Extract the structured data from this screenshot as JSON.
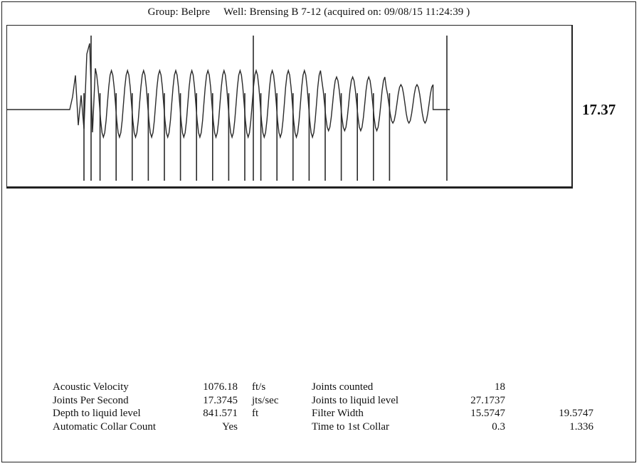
{
  "header": {
    "group": "Group: Belpre",
    "well": "Well: Brensing B 7-12 (acquired on: 09/08/15 11:24:39 )"
  },
  "side_value": "17.37",
  "stats_left": [
    {
      "label": "Acoustic Velocity",
      "value": "1076.18",
      "unit": "ft/s"
    },
    {
      "label": "Joints Per Second",
      "value": "17.3745",
      "unit": "jts/sec"
    },
    {
      "label": "Depth to liquid level",
      "value": "841.571",
      "unit": "ft"
    },
    {
      "label": "Automatic Collar Count",
      "value": "Yes",
      "unit": ""
    }
  ],
  "stats_right": [
    {
      "label": "Joints counted",
      "value": "18",
      "value2": ""
    },
    {
      "label": "Joints to liquid level",
      "value": "27.1737",
      "value2": ""
    },
    {
      "label": "Filter Width",
      "value": "15.5747",
      "value2": "19.5747"
    },
    {
      "label": "Time to 1st Collar",
      "value": "0.3",
      "value2": "1.336"
    }
  ],
  "colors": {
    "trace": "#2a2a2a",
    "frame": "#222222"
  }
}
